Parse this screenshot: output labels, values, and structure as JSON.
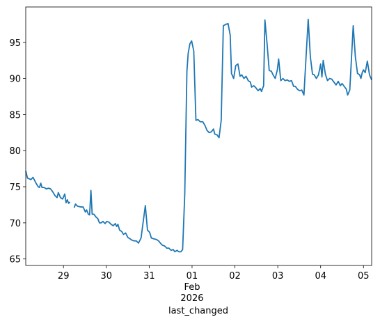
{
  "chart_data": {
    "type": "line",
    "x_label": "last_changed",
    "month_label": "Feb",
    "year_label": "2026",
    "color": "#1f77b4",
    "x": [
      28.12,
      28.16,
      28.24,
      28.29,
      28.36,
      28.41,
      28.44,
      28.47,
      28.5,
      28.55,
      28.6,
      28.65,
      28.7,
      28.75,
      28.8,
      28.85,
      28.88,
      28.93,
      28.98,
      29.03,
      29.06,
      29.09,
      29.12,
      29.15,
      29.2,
      29.25,
      29.28,
      29.33,
      29.41,
      29.46,
      29.51,
      29.54,
      29.58,
      29.61,
      29.64,
      29.67,
      29.71,
      29.76,
      29.8,
      29.84,
      29.88,
      29.92,
      29.97,
      30.01,
      30.06,
      30.11,
      30.16,
      30.21,
      30.24,
      30.27,
      30.31,
      30.36,
      30.4,
      30.45,
      30.5,
      30.55,
      30.6,
      30.65,
      30.7,
      30.75,
      30.81,
      30.91,
      30.96,
      31.01,
      31.05,
      31.1,
      31.17,
      31.22,
      31.26,
      31.31,
      31.36,
      31.41,
      31.46,
      31.51,
      31.56,
      31.6,
      31.65,
      31.69,
      31.74,
      31.78,
      31.83,
      31.88,
      31.91,
      31.95,
      31.99,
      32.04,
      32.09,
      32.14,
      32.19,
      32.25,
      32.3,
      32.35,
      32.4,
      32.45,
      32.5,
      32.53,
      32.58,
      32.63,
      32.68,
      32.73,
      32.79,
      32.84,
      32.89,
      32.92,
      32.97,
      33.02,
      33.07,
      33.12,
      33.16,
      33.21,
      33.26,
      33.31,
      33.36,
      33.39,
      33.44,
      33.49,
      33.54,
      33.59,
      33.62,
      33.67,
      33.7,
      33.75,
      33.8,
      33.85,
      33.89,
      33.94,
      33.99,
      34.02,
      34.07,
      34.12,
      34.17,
      34.22,
      34.27,
      34.32,
      34.37,
      34.41,
      34.46,
      34.51,
      34.56,
      34.61,
      34.66,
      34.71,
      34.76,
      34.81,
      34.85,
      34.9,
      34.95,
      35.0,
      35.03,
      35.06,
      35.11,
      35.16,
      35.21,
      35.26,
      35.31,
      35.36,
      35.41,
      35.46,
      35.5,
      35.55,
      35.6,
      35.63,
      35.68,
      35.73,
      35.76,
      35.81,
      35.86,
      35.91,
      35.94,
      35.97,
      36.0,
      36.04,
      36.09,
      36.14,
      36.19
    ],
    "values": [
      77.2,
      76.2,
      76.0,
      76.3,
      75.5,
      75.0,
      74.9,
      75.5,
      74.9,
      74.9,
      74.7,
      74.8,
      74.7,
      74.3,
      73.8,
      73.5,
      74.2,
      73.5,
      73.3,
      74.0,
      72.8,
      73.2,
      72.7,
      72.9,
      null,
      72.1,
      72.6,
      72.3,
      72.2,
      72.2,
      71.5,
      71.8,
      71.2,
      71.1,
      74.5,
      71.2,
      71.2,
      70.8,
      70.6,
      70.0,
      70.0,
      70.2,
      69.9,
      70.2,
      70.1,
      69.8,
      69.6,
      69.9,
      69.5,
      69.8,
      69.0,
      68.8,
      68.4,
      68.6,
      68.0,
      67.8,
      67.6,
      67.5,
      67.5,
      67.2,
      67.9,
      72.4,
      69.0,
      68.7,
      67.9,
      67.8,
      67.7,
      67.5,
      67.2,
      66.9,
      66.8,
      66.5,
      66.5,
      66.2,
      66.3,
      66.0,
      66.2,
      66.0,
      66.0,
      66.3,
      74.0,
      91.0,
      93.5,
      94.8,
      95.2,
      93.8,
      84.2,
      84.3,
      84.0,
      84.0,
      83.5,
      82.8,
      82.5,
      82.6,
      83.0,
      82.3,
      82.2,
      81.8,
      84.2,
      97.3,
      97.5,
      97.6,
      96.0,
      90.7,
      90.0,
      91.8,
      92.0,
      90.3,
      90.5,
      90.0,
      90.3,
      89.7,
      89.5,
      88.8,
      89.0,
      88.7,
      88.3,
      88.6,
      88.2,
      89.0,
      98.1,
      94.8,
      91.1,
      91.0,
      90.5,
      90.0,
      91.2,
      92.7,
      89.7,
      90.0,
      89.7,
      89.8,
      89.6,
      89.7,
      88.9,
      88.9,
      88.5,
      88.3,
      88.4,
      87.7,
      93.0,
      98.2,
      93.0,
      90.6,
      90.5,
      90.0,
      90.5,
      92.0,
      90.2,
      92.5,
      90.6,
      89.7,
      90.0,
      89.9,
      89.5,
      89.1,
      89.6,
      89.0,
      89.3,
      88.9,
      88.5,
      87.7,
      88.4,
      94.0,
      97.3,
      93.0,
      90.7,
      90.5,
      90.0,
      90.8,
      91.2,
      90.8,
      92.4,
      90.5,
      89.8
    ],
    "xlim": [
      28.12,
      36.19
    ],
    "xticks": [
      29,
      30,
      31,
      {
        "value": 32,
        "label": "01"
      },
      {
        "value": 33,
        "label": "02"
      },
      {
        "value": 34,
        "label": "03"
      },
      {
        "value": 35,
        "label": "04"
      },
      {
        "value": 36,
        "label": "05"
      }
    ],
    "ylim": [
      64.1,
      99.9
    ],
    "yticks": [
      65,
      70,
      75,
      80,
      85,
      90,
      95
    ],
    "grid": false
  }
}
